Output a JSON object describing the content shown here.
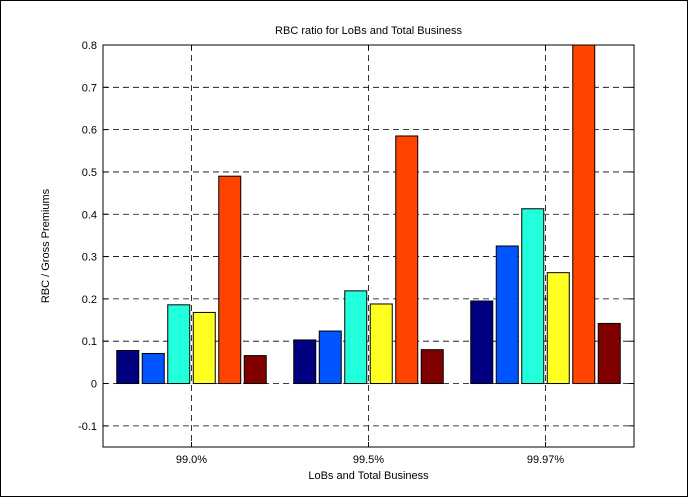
{
  "chart_data": {
    "type": "bar",
    "title": "RBC ratio for LoBs and Total Business",
    "xlabel": "LoBs and Total Business",
    "ylabel": "RBC / Gross Premiums",
    "categories": [
      "99.0%",
      "99.5%",
      "99.97%"
    ],
    "ylim": [
      -0.15,
      0.8
    ],
    "yticks": [
      "-0.1",
      "0",
      "0.1",
      "0.2",
      "0.3",
      "0.4",
      "0.5",
      "0.6",
      "0.7",
      "0.8"
    ],
    "grid": true,
    "grid_style": "dashed",
    "legend": "none",
    "series": [
      {
        "color": "#000080",
        "values": [
          0.078,
          0.103,
          0.195
        ]
      },
      {
        "color": "#0055ff",
        "values": [
          0.071,
          0.124,
          0.325
        ]
      },
      {
        "color": "#22ffdd",
        "values": [
          0.186,
          0.219,
          0.413
        ]
      },
      {
        "color": "#ffff22",
        "values": [
          0.168,
          0.188,
          0.262
        ]
      },
      {
        "color": "#ff4400",
        "values": [
          0.49,
          0.585,
          0.8
        ]
      },
      {
        "color": "#800000",
        "values": [
          0.066,
          0.08,
          0.142
        ]
      }
    ]
  }
}
